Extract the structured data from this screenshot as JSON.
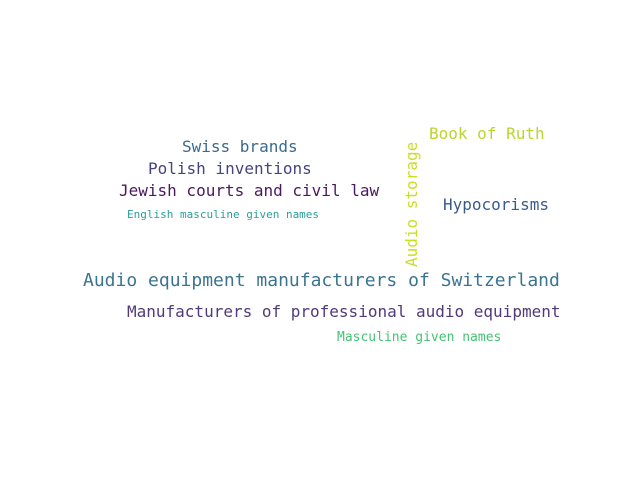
{
  "words": [
    {
      "text": "Swiss brands",
      "color": "#3b6a8f"
    },
    {
      "text": "Polish inventions",
      "color": "#46447f"
    },
    {
      "text": "Jewish courts and civil law",
      "color": "#4a1860"
    },
    {
      "text": "English masculine given names",
      "color": "#2aa099"
    },
    {
      "text": "Audio storage",
      "color": "#c8df24"
    },
    {
      "text": "Book of Ruth",
      "color": "#bcd52e"
    },
    {
      "text": "Hypocorisms",
      "color": "#3a5b8c"
    },
    {
      "text": "Audio equipment manufacturers of Switzerland",
      "color": "#3a7491"
    },
    {
      "text": "Manufacturers of professional audio equipment",
      "color": "#503a7a"
    },
    {
      "text": "Masculine given names",
      "color": "#45c374"
    }
  ]
}
